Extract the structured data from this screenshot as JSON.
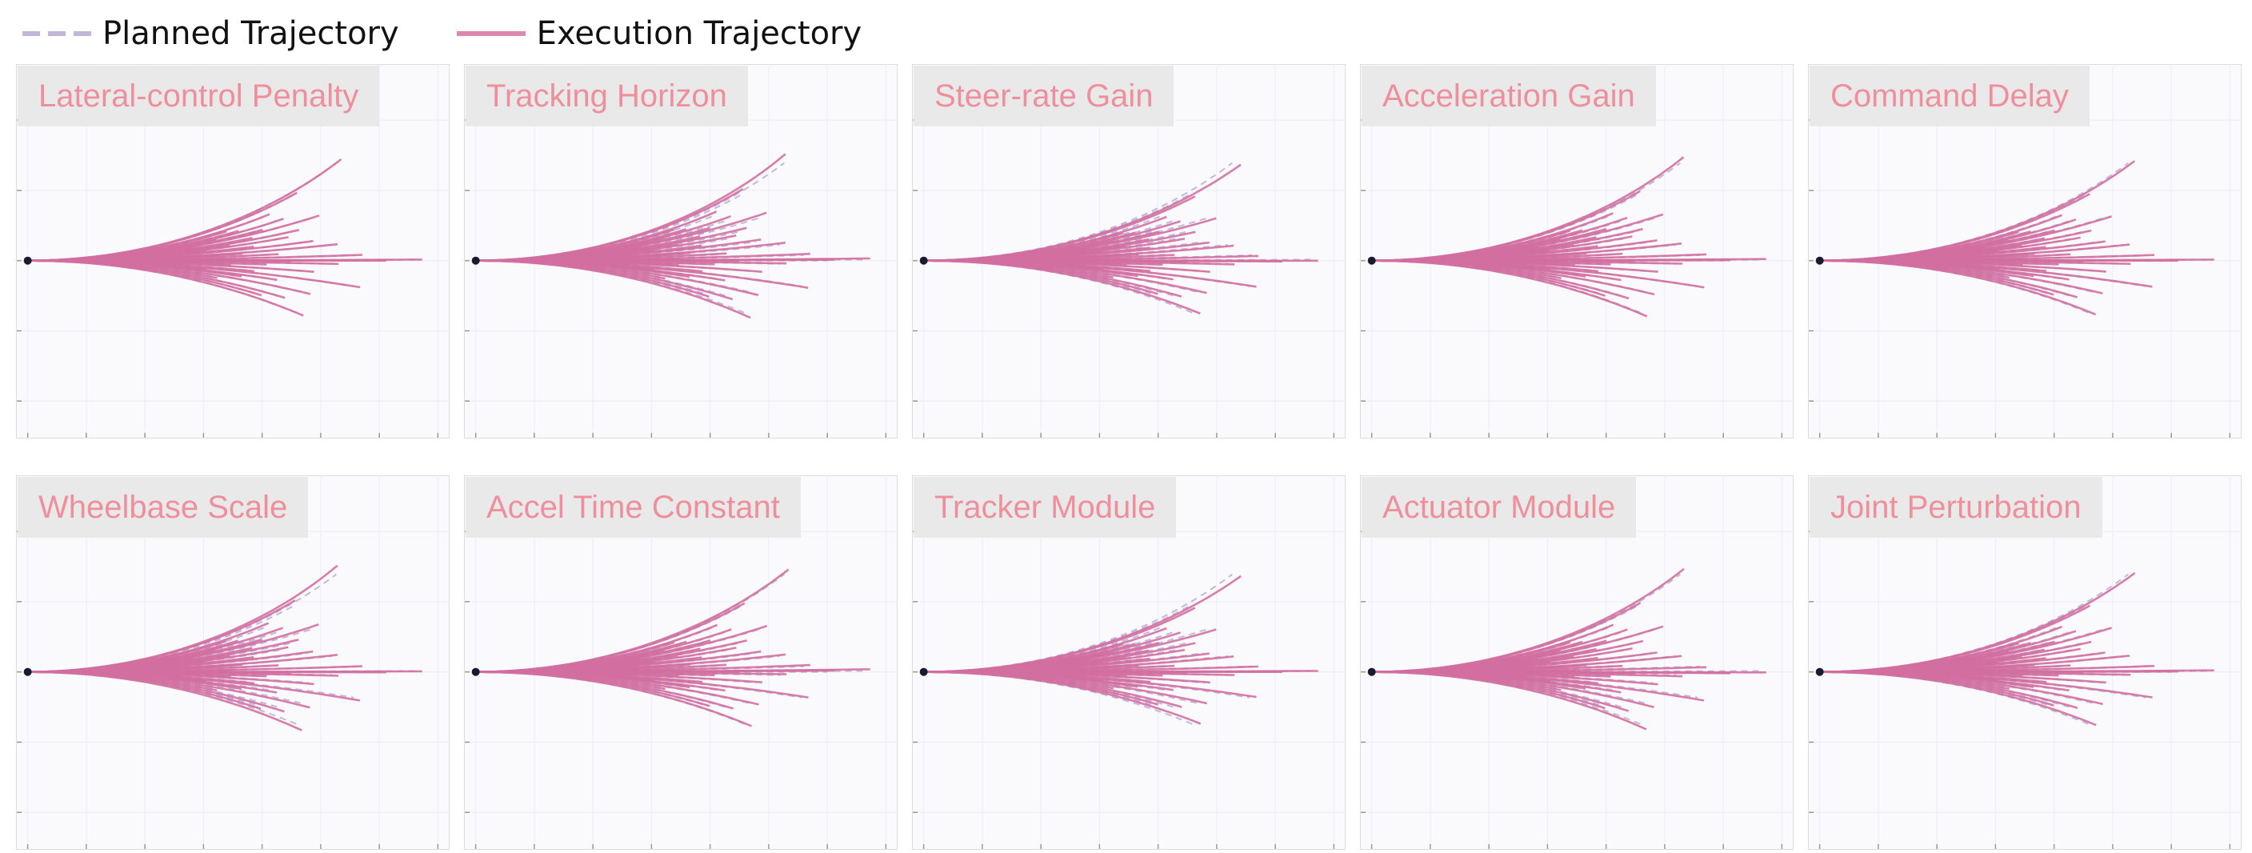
{
  "legend": [
    {
      "label": "Planned Trajectory",
      "style": "dashed",
      "color": "#c2b6dc"
    },
    {
      "label": "Execution Trajectory",
      "style": "solid",
      "color": "#dd88ae"
    }
  ],
  "colors": {
    "planned": "#b9acd6",
    "execution": "#d26fa0",
    "panel_bg": "#fafafd",
    "title_bg": "#e9e9e9",
    "title_text": "#ef8f9c",
    "origin": "#1a1a2e"
  },
  "chart_data": {
    "type": "line",
    "layout": "grid 2x5",
    "grid": true,
    "xlim": [
      -1,
      36
    ],
    "ylim": [
      -19,
      21
    ],
    "origin": [
      0,
      0
    ],
    "trajectory_curvatures": [
      0.026,
      0.025,
      0.022,
      0.021,
      0.019,
      0.018,
      0.017,
      0.016,
      0.015,
      0.014,
      0.013,
      0.012,
      0.011,
      0.01,
      0.009,
      0.008,
      0.007,
      0.006,
      0.005,
      0.0045,
      0.004,
      0.003,
      0.002,
      0.0015,
      0.001,
      0.0005,
      0.0002,
      0.0,
      -0.0002,
      -0.0005,
      -0.001,
      -0.0015,
      -0.002,
      -0.003,
      -0.004,
      -0.005,
      -0.006,
      -0.007,
      -0.008,
      -0.009,
      -0.01,
      -0.012,
      -0.014,
      -0.016,
      -0.018,
      -0.02
    ],
    "trajectory_lengths": [
      29,
      24,
      21,
      17,
      18,
      22,
      16,
      20,
      25,
      14,
      19,
      23,
      17,
      22,
      15,
      19,
      24,
      13,
      26,
      18,
      16,
      21,
      11,
      28,
      17,
      9,
      33,
      30,
      22,
      15,
      26,
      14,
      20,
      17,
      24,
      13,
      19,
      28,
      15,
      21,
      18,
      24,
      16,
      22,
      20,
      24
    ],
    "panels": [
      {
        "title": "Lateral-control Penalty",
        "exec_scale": 1.0,
        "exec_bias": 0.0
      },
      {
        "title": "Tracking Horizon",
        "exec_scale": 1.05,
        "exec_bias": 0.0002
      },
      {
        "title": "Steer-rate Gain",
        "exec_scale": 0.95,
        "exec_bias": -0.0002
      },
      {
        "title": "Acceleration Gain",
        "exec_scale": 1.02,
        "exec_bias": 0.0001
      },
      {
        "title": "Command Delay",
        "exec_scale": 0.98,
        "exec_bias": 0.0
      },
      {
        "title": "Wheelbase Scale",
        "exec_scale": 1.06,
        "exec_bias": -0.0001
      },
      {
        "title": "Accel Time Constant",
        "exec_scale": 1.0,
        "exec_bias": 0.0003
      },
      {
        "title": "Tracker Module",
        "exec_scale": 0.94,
        "exec_bias": 0.0
      },
      {
        "title": "Actuator Module",
        "exec_scale": 1.03,
        "exec_bias": -0.0003
      },
      {
        "title": "Joint Perturbation",
        "exec_scale": 0.97,
        "exec_bias": 0.0001
      }
    ]
  }
}
